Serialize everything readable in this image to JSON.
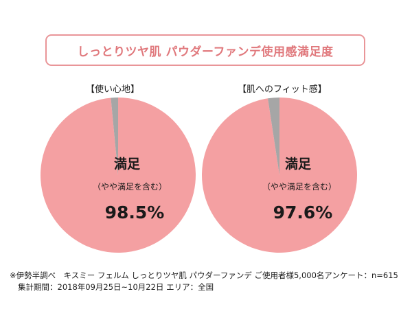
{
  "title": "しっとりツヤ肌 パウダーファンデ使用感満足度",
  "colors": {
    "accent": "#e0787c",
    "satisfied": "#f4a0a2",
    "other": "#a6a6a6"
  },
  "chart_data": [
    {
      "type": "pie",
      "title": "【使い心地】",
      "slices": [
        {
          "label": "満足",
          "value": 98.5
        },
        {
          "label": "",
          "value": 1.5
        }
      ],
      "annotation": {
        "heading": "満足",
        "sub": "（やや満足を含む）",
        "value_text": "98.5%"
      }
    },
    {
      "type": "pie",
      "title": "【肌へのフィット感】",
      "slices": [
        {
          "label": "満足",
          "value": 97.6
        },
        {
          "label": "",
          "value": 2.4
        }
      ],
      "annotation": {
        "heading": "満足",
        "sub": "（やや満足を含む）",
        "value_text": "97.6%"
      }
    }
  ],
  "notes": [
    "※伊勢半調べ　キスミー フェルム しっとりツヤ肌 パウダーファンデ ご使用者様5,000名アンケート：n=615",
    "集計期間：2018年09月25日~10月22日 エリア：全国"
  ]
}
